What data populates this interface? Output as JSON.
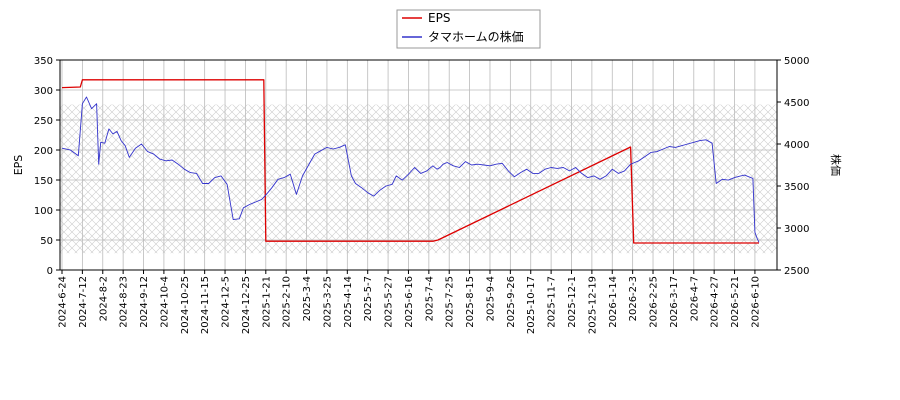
{
  "chart_data": {
    "type": "line",
    "title": "",
    "legend_position": "top-center",
    "grid": true,
    "background_hatch": true,
    "x_ticks": [
      "2024-6-24",
      "2024-7-12",
      "2024-8-2",
      "2024-8-23",
      "2024-9-12",
      "2024-10-4",
      "2024-10-25",
      "2024-11-15",
      "2024-12-5",
      "2024-12-25",
      "2025-1-21",
      "2025-2-10",
      "2025-3-4",
      "2025-3-25",
      "2025-4-14",
      "2025-5-7",
      "2025-5-27",
      "2025-6-16",
      "2025-7-4",
      "2025-7-25",
      "2025-8-15",
      "2025-9-4",
      "2025-9-26",
      "2025-10-17",
      "2025-11-7",
      "2025-12-1",
      "2025-12-19",
      "2026-1-14",
      "2026-2-3",
      "2026-2-25",
      "2026-3-17",
      "2026-4-7",
      "2026-4-27",
      "2026-5-21",
      "2026-6-10"
    ],
    "left_axis": {
      "label": "EPS",
      "ylim": [
        0,
        350
      ],
      "ticks": [
        0,
        50,
        100,
        150,
        200,
        250,
        300,
        350
      ]
    },
    "right_axis": {
      "label": "株価",
      "ylim": [
        2500,
        5000
      ],
      "ticks": [
        2500,
        3000,
        3500,
        4000,
        4500,
        5000
      ]
    },
    "series": [
      {
        "name": "EPS",
        "axis": "left",
        "color": "#dd0000",
        "x": [
          0,
          0.9,
          1.0,
          4.9,
          5.0,
          9.9,
          10.0,
          18.2,
          18.45,
          27.9,
          28.05,
          34.2
        ],
        "values": [
          304,
          305,
          317,
          317,
          317,
          317,
          48,
          48,
          50,
          205,
          45,
          45
        ]
      },
      {
        "name": "タマホームの株価",
        "axis": "right",
        "color": "#3333cc",
        "x": [
          0,
          0.4,
          0.8,
          1.0,
          1.2,
          1.45,
          1.7,
          1.8,
          1.9,
          2.1,
          2.3,
          2.5,
          2.7,
          2.9,
          3.1,
          3.3,
          3.6,
          3.9,
          4.2,
          4.5,
          4.8,
          5.1,
          5.4,
          5.7,
          6.0,
          6.3,
          6.6,
          6.9,
          7.2,
          7.5,
          7.8,
          8.1,
          8.4,
          8.7,
          8.9,
          9.2,
          9.5,
          9.8,
          9.95,
          10.1,
          10.3,
          10.6,
          10.9,
          11.2,
          11.5,
          11.8,
          12.1,
          12.4,
          12.7,
          13.0,
          13.3,
          13.6,
          13.9,
          14.2,
          14.4,
          14.7,
          15.0,
          15.3,
          15.6,
          15.9,
          16.2,
          16.4,
          16.7,
          17.0,
          17.3,
          17.6,
          17.9,
          18.2,
          18.4,
          18.55,
          18.7,
          18.9,
          19.2,
          19.5,
          19.8,
          20.1,
          20.4,
          20.7,
          21.0,
          21.3,
          21.6,
          21.9,
          22.2,
          22.5,
          22.8,
          23.1,
          23.4,
          23.7,
          24.0,
          24.3,
          24.6,
          24.9,
          25.2,
          25.5,
          25.8,
          26.1,
          26.4,
          26.7,
          27.0,
          27.3,
          27.6,
          27.9,
          28.1,
          28.3,
          28.6,
          28.9,
          29.2,
          29.5,
          29.8,
          30.1,
          30.4,
          30.7,
          31.0,
          31.3,
          31.6,
          31.9,
          32.1,
          32.4,
          32.7,
          33.0,
          33.3,
          33.5,
          33.7,
          33.9,
          34.0,
          34.1,
          34.2
        ],
        "values": [
          3950,
          3930,
          3860,
          4480,
          4560,
          4420,
          4480,
          3760,
          4020,
          4010,
          4180,
          4120,
          4150,
          4040,
          3980,
          3840,
          3950,
          4000,
          3910,
          3880,
          3820,
          3800,
          3810,
          3760,
          3700,
          3660,
          3650,
          3530,
          3530,
          3600,
          3620,
          3520,
          3100,
          3110,
          3240,
          3280,
          3310,
          3340,
          3380,
          3420,
          3480,
          3580,
          3600,
          3640,
          3400,
          3620,
          3750,
          3880,
          3920,
          3960,
          3940,
          3960,
          3990,
          3620,
          3530,
          3480,
          3420,
          3380,
          3450,
          3500,
          3520,
          3620,
          3570,
          3640,
          3720,
          3650,
          3680,
          3740,
          3700,
          3720,
          3760,
          3780,
          3740,
          3720,
          3790,
          3750,
          3760,
          3750,
          3740,
          3760,
          3770,
          3680,
          3610,
          3660,
          3700,
          3650,
          3650,
          3700,
          3720,
          3710,
          3720,
          3680,
          3720,
          3650,
          3600,
          3620,
          3580,
          3620,
          3700,
          3650,
          3680,
          3760,
          3780,
          3800,
          3850,
          3900,
          3910,
          3940,
          3970,
          3960,
          3980,
          4000,
          4020,
          4040,
          4050,
          4010,
          3530,
          3580,
          3570,
          3600,
          3620,
          3630,
          3610,
          3590,
          2950,
          2880,
          2830
        ]
      }
    ]
  }
}
